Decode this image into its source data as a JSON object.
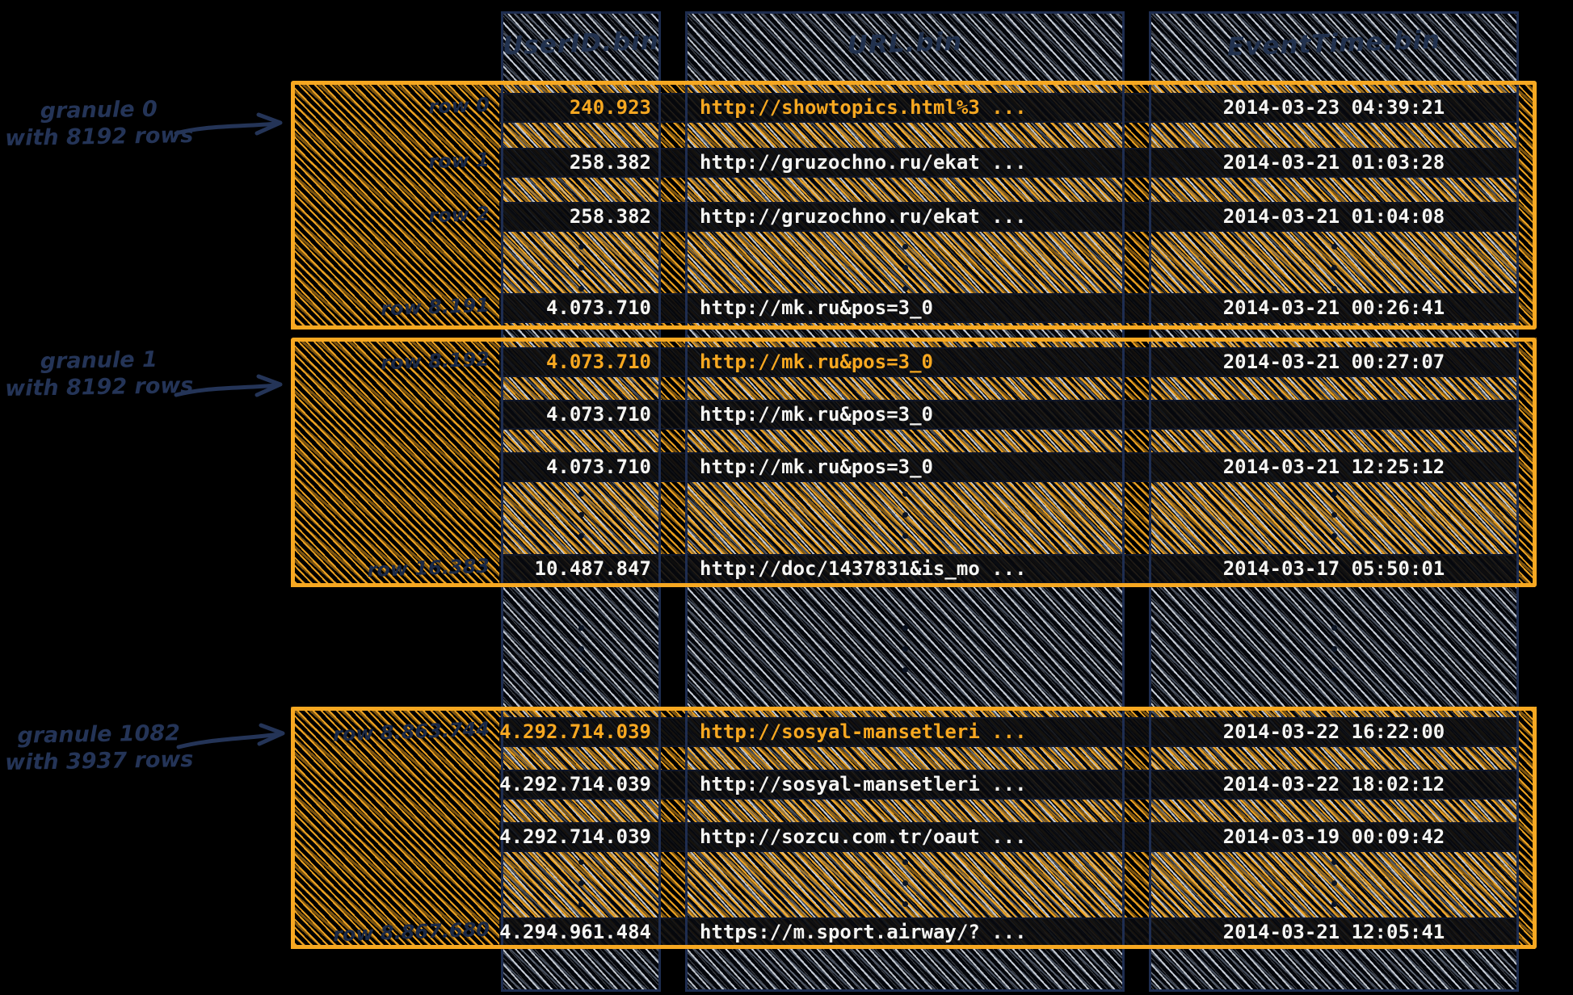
{
  "columns": [
    "UserID.bin",
    "URL.bin",
    "EventTime.bin"
  ],
  "colors": {
    "accent_orange": "#f7a821",
    "hatch_blue": "#cdd6e2",
    "navy_ink": "#1e2d50",
    "row_text": "#f5f5f3",
    "background": "#000000"
  },
  "granules": [
    {
      "label": [
        "granule 0",
        "with 8192 rows"
      ],
      "rows": [
        {
          "label": "row 0",
          "user_id": "240.923",
          "url": "http://showtopics.html%3 ...",
          "event_time": "2014-03-23 04:39:21",
          "highlight": true
        },
        {
          "label": "row 1",
          "user_id": "258.382",
          "url": "http://gruzochno.ru/ekat ...",
          "event_time": "2014-03-21 01:03:28",
          "highlight": false
        },
        {
          "label": "row 2",
          "user_id": "258.382",
          "url": "http://gruzochno.ru/ekat ...",
          "event_time": "2014-03-21 01:04:08",
          "highlight": false
        },
        {
          "label": "row 8.191",
          "user_id": "4.073.710",
          "url": "http://mk.ru&pos=3_0",
          "event_time": "2014-03-21 00:26:41",
          "highlight": false
        }
      ]
    },
    {
      "label": [
        "granule 1",
        "with 8192 rows"
      ],
      "rows": [
        {
          "label": "row 8.192",
          "user_id": "4.073.710",
          "url": "http://mk.ru&pos=3_0",
          "event_time": "2014-03-21 00:27:07",
          "highlight": true
        },
        {
          "label": null,
          "user_id": "4.073.710",
          "url": "http://mk.ru&pos=3_0",
          "event_time": "",
          "highlight": false
        },
        {
          "label": null,
          "user_id": "4.073.710",
          "url": "http://mk.ru&pos=3_0",
          "event_time": "2014-03-21 12:25:12",
          "highlight": false
        },
        {
          "label": "row 16.383",
          "user_id": "10.487.847",
          "url": "http://doc/1437831&is_mo ...",
          "event_time": "2014-03-17 05:50:01",
          "highlight": false
        }
      ]
    },
    {
      "label": [
        "granule 1082",
        "with 3937 rows"
      ],
      "rows": [
        {
          "label": "row 8.863.744",
          "user_id": "4.292.714.039",
          "url": "http://sosyal-mansetleri ...",
          "event_time": "2014-03-22 16:22:00",
          "highlight": true
        },
        {
          "label": null,
          "user_id": "4.292.714.039",
          "url": "http://sosyal-mansetleri ...",
          "event_time": "2014-03-22 18:02:12",
          "highlight": false
        },
        {
          "label": null,
          "user_id": "4.292.714.039",
          "url": "http://sozcu.com.tr/oaut ...",
          "event_time": "2014-03-19 00:09:42",
          "highlight": false
        },
        {
          "label": "row 8.867.680",
          "user_id": "4.294.961.484",
          "url": "https://m.sport.airway/? ...",
          "event_time": "2014-03-21 12:05:41",
          "highlight": false
        }
      ]
    }
  ]
}
